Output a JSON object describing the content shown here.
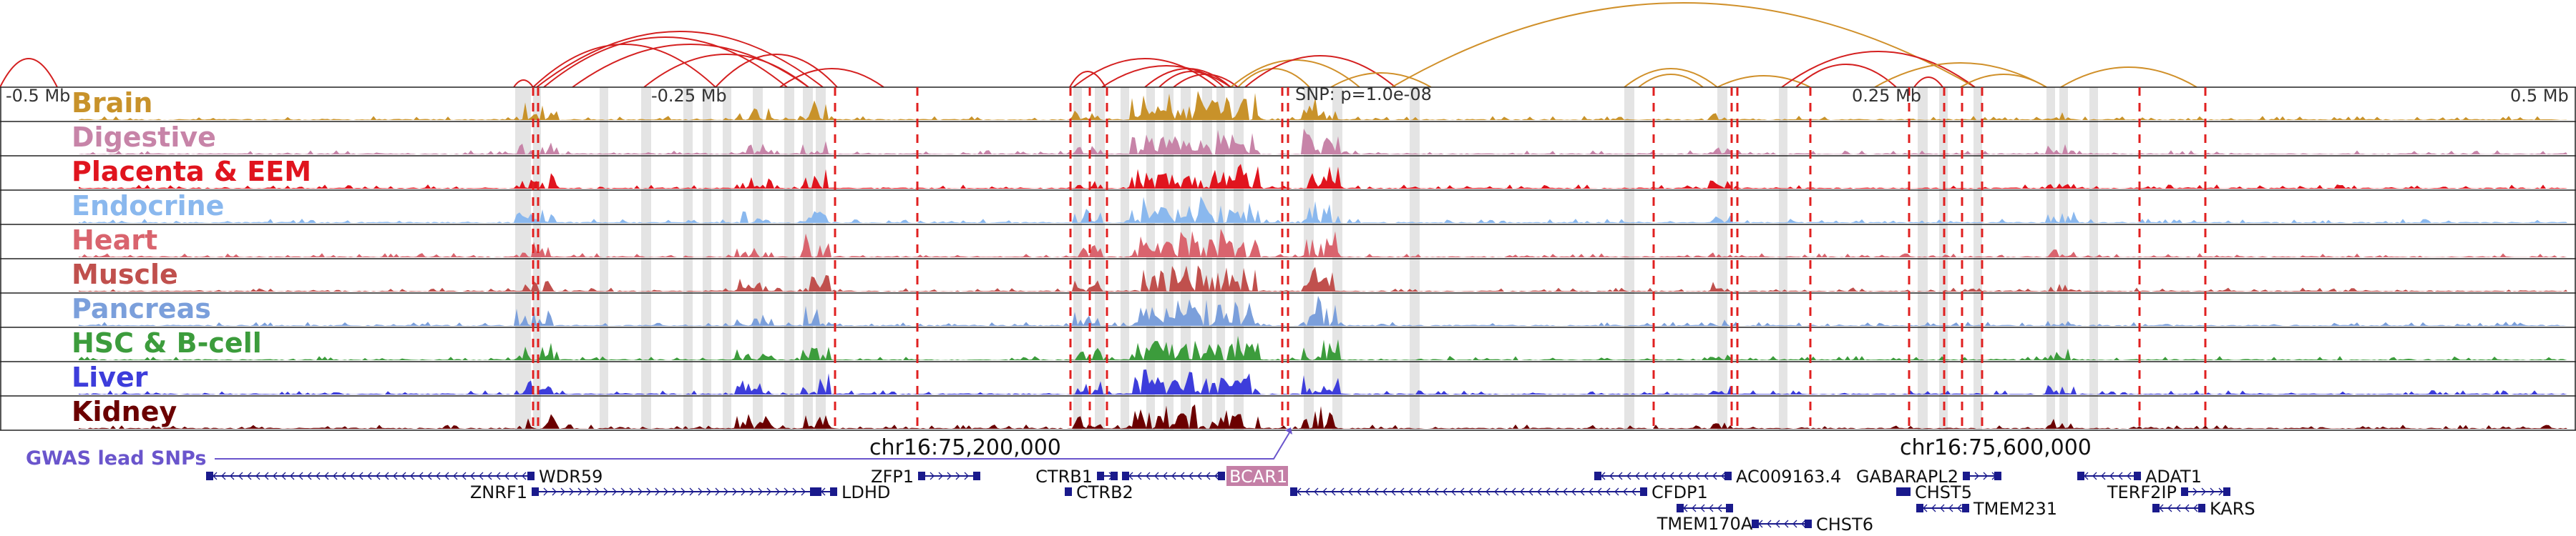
{
  "figure": {
    "region": "chr16",
    "scale_labels": [
      "-0.5 Mb",
      "-0.25 Mb",
      "0.25 Mb",
      "0.5 Mb"
    ],
    "snp_label": "SNP: p=1.0e-08",
    "gwas_label": "GWAS lead SNPs",
    "coordinate_labels": [
      "chr16:75,200,000",
      "chr16:75,600,000"
    ]
  },
  "tracks": [
    {
      "name": "Brain",
      "color": "#c8922a"
    },
    {
      "name": "Digestive",
      "color": "#c784a8"
    },
    {
      "name": "Placenta & EEM",
      "color": "#e0141e"
    },
    {
      "name": "Endocrine",
      "color": "#8ab8ee"
    },
    {
      "name": "Heart",
      "color": "#d9646e"
    },
    {
      "name": "Muscle",
      "color": "#c0504d"
    },
    {
      "name": "Pancreas",
      "color": "#7b9fdb"
    },
    {
      "name": "HSC & B-cell",
      "color": "#3c9c3c"
    },
    {
      "name": "Liver",
      "color": "#3d3ddb"
    },
    {
      "name": "Kidney",
      "color": "#6b0000"
    }
  ],
  "genes": [
    {
      "name": "WDR59",
      "strand": "-"
    },
    {
      "name": "ZNRF1",
      "strand": "+"
    },
    {
      "name": "LDHD",
      "strand": "-"
    },
    {
      "name": "ZFP1",
      "strand": "+"
    },
    {
      "name": "CTRB1",
      "strand": "+"
    },
    {
      "name": "CTRB2",
      "strand": "-"
    },
    {
      "name": "BCAR1",
      "strand": "-"
    },
    {
      "name": "AC009163.4",
      "strand": "-"
    },
    {
      "name": "CFDP1",
      "strand": "-"
    },
    {
      "name": "TMEM170A",
      "strand": "-"
    },
    {
      "name": "CHST6",
      "strand": "-"
    },
    {
      "name": "GABARAPL2",
      "strand": "+"
    },
    {
      "name": "CHST5",
      "strand": "-"
    },
    {
      "name": "TMEM231",
      "strand": "-"
    },
    {
      "name": "ADAT1",
      "strand": "-"
    },
    {
      "name": "TERF2IP",
      "strand": "+"
    },
    {
      "name": "KARS",
      "strand": "-"
    }
  ],
  "colors": {
    "arc_red": "#d42020",
    "arc_orange": "#d0902a",
    "gene": "#1a1a8c",
    "gwas": "#6a55cc",
    "highlight_gene_bg": "#c47fa6",
    "snp_dash": "#e02020"
  }
}
